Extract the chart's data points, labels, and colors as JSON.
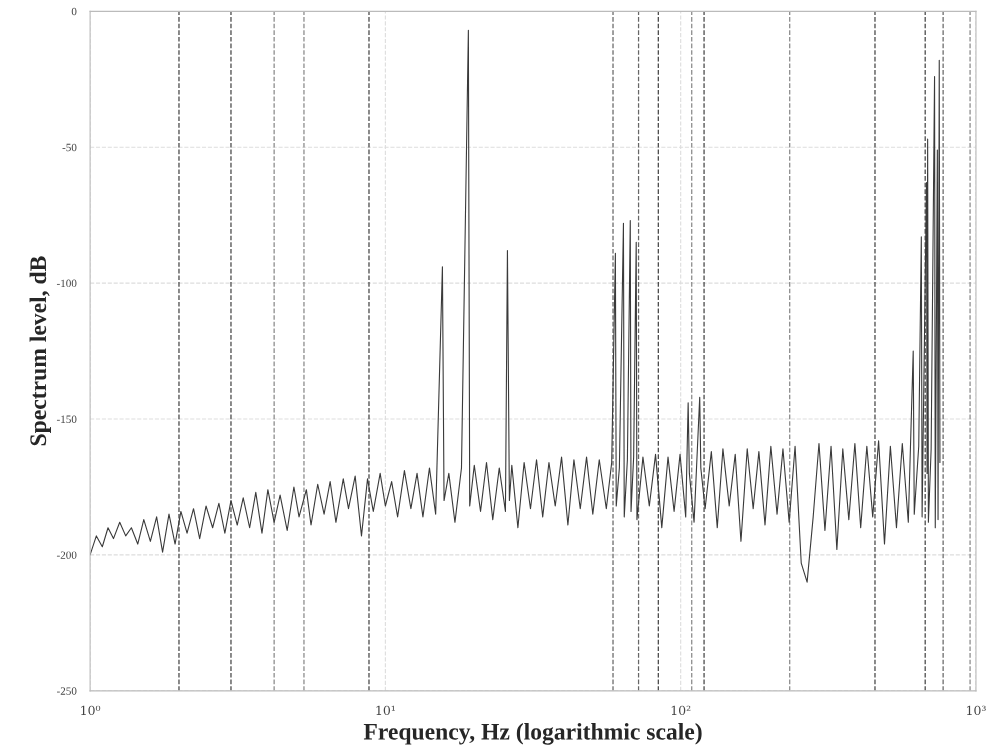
{
  "chart_data": {
    "type": "line",
    "xlabel": "Frequency, Hz (logarithmic scale)",
    "ylabel": "Spectrum level, dB",
    "log": "x",
    "xlim": [
      1,
      1000
    ],
    "xticks": [
      {
        "value": 1,
        "label": "10⁰"
      },
      {
        "value": 10,
        "label": "10¹"
      },
      {
        "value": 100,
        "label": "10²"
      },
      {
        "value": 1000,
        "label": "10³"
      }
    ],
    "ylim": [
      -250,
      0
    ],
    "yticks": [
      0,
      -50,
      -100,
      -150,
      -200,
      -250
    ],
    "grid": true,
    "line_style": "solid",
    "marker": "none",
    "series": [
      {
        "color": "#3a3a3a",
        "x": [
          1.0,
          1.05,
          1.1,
          1.15,
          1.2,
          1.26,
          1.32,
          1.38,
          1.45,
          1.52,
          1.6,
          1.68,
          1.76,
          1.85,
          1.94,
          2.03,
          2.13,
          2.24,
          2.35,
          2.47,
          2.6,
          2.73,
          2.86,
          3.0,
          3.15,
          3.3,
          3.47,
          3.64,
          3.82,
          4.0,
          4.2,
          4.4,
          4.65,
          4.9,
          5.1,
          5.4,
          5.6,
          5.9,
          6.2,
          6.5,
          6.8,
          7.2,
          7.5,
          7.9,
          8.3,
          8.7,
          9.1,
          9.6,
          10,
          10.5,
          11,
          11.6,
          12.2,
          12.8,
          13.4,
          14.1,
          14.8,
          15.6,
          15.8,
          16.4,
          17.2,
          18.1,
          19.1,
          19.3,
          20,
          21,
          22,
          23.1,
          24.3,
          25.5,
          25.9,
          26.3,
          26.8,
          28.1,
          29.5,
          31,
          32.5,
          34.1,
          35.8,
          37.6,
          39.5,
          41.5,
          43.5,
          45.7,
          48,
          50.4,
          53,
          56,
          58.4,
          60.1,
          60.5,
          62,
          64,
          64.4,
          66,
          67.5,
          67.9,
          69.3,
          70.7,
          71.1,
          74.5,
          78.3,
          82.2,
          86.3,
          90.6,
          95,
          99.5,
          104,
          106,
          107,
          111,
          116,
          117,
          121,
          127,
          133,
          139,
          146,
          153,
          160,
          168,
          176,
          184,
          193,
          202,
          212,
          222,
          233,
          244,
          256,
          268,
          281,
          294,
          308,
          323,
          338,
          354,
          371,
          389,
          407,
          427,
          447,
          468,
          490,
          513,
          538,
          563,
          590,
          613,
          618,
          640,
          653,
          657,
          680,
          683,
          686,
          690,
          705,
          724,
          728,
          740,
          744,
          751,
          755
        ],
        "values": [
          -200,
          -193,
          -197,
          -190,
          -194,
          -188,
          -193,
          -190,
          -196,
          -187,
          -195,
          -186,
          -199,
          -185,
          -196,
          -184,
          -192,
          -183,
          -194,
          -182,
          -190,
          -181,
          -192,
          -180,
          -189,
          -179,
          -190,
          -177,
          -192,
          -176,
          -188,
          -178,
          -191,
          -175,
          -186,
          -176,
          -189,
          -174,
          -185,
          -173,
          -188,
          -172,
          -183,
          -171,
          -193,
          -172,
          -184,
          -170,
          -182,
          -173,
          -186,
          -169,
          -183,
          -170,
          -186,
          -168,
          -185,
          -94,
          -180,
          -170,
          -188,
          -168,
          -7,
          -182,
          -167,
          -184,
          -166,
          -187,
          -168,
          -184,
          -88,
          -180,
          -167,
          -190,
          -166,
          -183,
          -165,
          -186,
          -166,
          -182,
          -164,
          -189,
          -165,
          -183,
          -164,
          -185,
          -165,
          -183,
          -166,
          -89,
          -182,
          -168,
          -78,
          -186,
          -165,
          -77,
          -184,
          -164,
          -85,
          -187,
          -164,
          -182,
          -163,
          -190,
          -164,
          -184,
          -163,
          -186,
          -144,
          -170,
          -188,
          -142,
          -168,
          -183,
          -162,
          -190,
          -161,
          -182,
          -163,
          -195,
          -161,
          -183,
          -162,
          -189,
          -160,
          -185,
          -161,
          -188,
          -160,
          -203,
          -210,
          -186,
          -159,
          -191,
          -160,
          -198,
          -161,
          -187,
          -159,
          -190,
          -160,
          -186,
          -158,
          -196,
          -160,
          -190,
          -159,
          -188,
          -125,
          -185,
          -160,
          -83,
          -186,
          -63,
          -170,
          -47,
          -188,
          -161,
          -24,
          -190,
          -51,
          -187,
          -18,
          -166
        ]
      }
    ],
    "ref_lines": [
      {
        "axis": "x",
        "value": 2,
        "color": "#444444",
        "line_style": "dashed"
      },
      {
        "axis": "x",
        "value": 3,
        "color": "#444444",
        "line_style": "dashed"
      },
      {
        "axis": "x",
        "value": 4.2,
        "color": "#888888",
        "line_style": "dashed"
      },
      {
        "axis": "x",
        "value": 5.3,
        "color": "#888888",
        "line_style": "dashed"
      },
      {
        "axis": "x",
        "value": 8.8,
        "color": "#444444",
        "line_style": "dashed"
      },
      {
        "axis": "x",
        "value": 59,
        "color": "#666666",
        "line_style": "dashed"
      },
      {
        "axis": "x",
        "value": 72,
        "color": "#666666",
        "line_style": "dashed"
      },
      {
        "axis": "x",
        "value": 84,
        "color": "#444444",
        "line_style": "dashed"
      },
      {
        "axis": "x",
        "value": 109,
        "color": "#888888",
        "line_style": "dashed"
      },
      {
        "axis": "x",
        "value": 120,
        "color": "#444444",
        "line_style": "dashed"
      },
      {
        "axis": "x",
        "value": 234,
        "color": "#888888",
        "line_style": "dashed"
      },
      {
        "axis": "x",
        "value": 455,
        "color": "#444444",
        "line_style": "dashed"
      },
      {
        "axis": "x",
        "value": 673,
        "color": "#444444",
        "line_style": "dashed"
      },
      {
        "axis": "x",
        "value": 774,
        "color": "#666666",
        "line_style": "dashed"
      },
      {
        "axis": "x",
        "value": 955,
        "color": "#888888",
        "line_style": "dashed"
      }
    ]
  }
}
